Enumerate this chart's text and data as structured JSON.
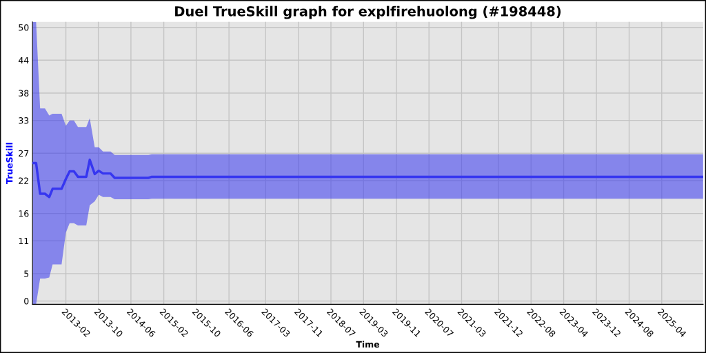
{
  "chart_data": {
    "type": "line",
    "title": "Duel TrueSkill graph for explfirehuolong (#198448)",
    "xlabel": "Time",
    "ylabel": "TrueSkill",
    "x": [
      "2012-05-28",
      "2012-06-24",
      "2012-07-24",
      "2012-08-29",
      "2012-09-30",
      "2012-10-25",
      "2012-12-31",
      "2013-02-01",
      "2013-03-01",
      "2013-04-02",
      "2013-05-02",
      "2013-07-03",
      "2013-07-29",
      "2013-09-04",
      "2013-10-04",
      "2013-11-05",
      "2013-12-31",
      "2014-01-31",
      "2014-10-09",
      "2014-11-04",
      "2026-02-04"
    ],
    "series": [
      {
        "color": "#3636f0",
        "values": [
          25.2,
          25.2,
          19.6,
          19.6,
          19.0,
          20.5,
          20.5,
          22.3,
          23.7,
          23.7,
          22.7,
          22.7,
          25.8,
          23.2,
          23.8,
          23.3,
          23.3,
          22.5,
          22.5,
          22.7,
          22.7
        ],
        "upper": [
          51,
          51,
          35.2,
          35.2,
          33.9,
          34.2,
          34.2,
          32.0,
          33.0,
          33.0,
          31.8,
          31.8,
          33.4,
          28.1,
          28.1,
          27.3,
          27.3,
          26.7,
          26.7,
          26.8,
          26.8
        ],
        "lower": [
          -0.6,
          -0.6,
          4.1,
          4.1,
          4.3,
          6.7,
          6.7,
          12.5,
          14.2,
          14.2,
          13.8,
          13.8,
          17.5,
          18.2,
          19.4,
          19.0,
          19.0,
          18.6,
          18.6,
          18.7,
          18.7
        ]
      }
    ],
    "xlim": [
      "2012-05-28",
      "2026-02-04"
    ],
    "xticks": [
      "2013-02",
      "2013-10",
      "2014-06",
      "2015-02",
      "2015-10",
      "2016-06",
      "2017-03",
      "2017-11",
      "2018-07",
      "2019-03",
      "2019-11",
      "2020-07",
      "2021-03",
      "2021-12",
      "2022-08",
      "2023-04",
      "2023-12",
      "2024-08",
      "2025-04"
    ],
    "ylim": [
      -0.6,
      51
    ],
    "yticks": [
      0,
      5,
      11,
      16,
      22,
      27,
      33,
      38,
      44,
      50
    ],
    "grid": true,
    "marker": "none",
    "line_style": "solid"
  }
}
